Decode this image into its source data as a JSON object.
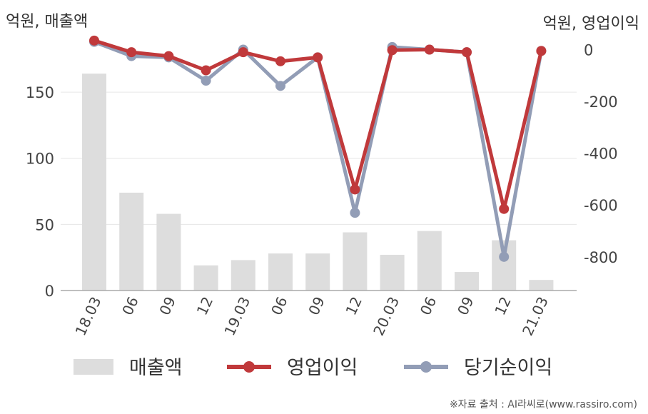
{
  "chart_data": {
    "type": "bar+line",
    "categories": [
      "18.03",
      "06",
      "09",
      "12",
      "19.03",
      "06",
      "09",
      "12",
      "20.03",
      "06",
      "09",
      "12",
      "21.03"
    ],
    "left_axis": {
      "unit_label": "억원, 매출액",
      "ticks": [
        "0",
        "50",
        "100",
        "150"
      ],
      "tick_values": [
        0,
        50,
        100,
        150
      ],
      "ylim": [
        0,
        190
      ]
    },
    "right_axis": {
      "unit_label": "억원, 영업이익",
      "ticks": [
        "0",
        "-200",
        "-400",
        "-600",
        "-800"
      ],
      "tick_values": [
        0,
        -200,
        -400,
        -600,
        -800
      ],
      "ylim": [
        -930,
        40
      ]
    },
    "series": [
      {
        "name": "매출액",
        "kind": "bar",
        "axis": "left",
        "color": "#dddddd",
        "values": [
          164,
          74,
          58,
          19,
          23,
          28,
          28,
          44,
          27,
          45,
          14,
          38,
          8
        ]
      },
      {
        "name": "영업이익",
        "kind": "line",
        "axis": "right",
        "color": "#c0393b",
        "values": [
          35,
          -10,
          -25,
          -80,
          -10,
          -45,
          -30,
          -540,
          -2,
          0,
          -10,
          -615,
          -5
        ]
      },
      {
        "name": "당기순이익",
        "kind": "line",
        "axis": "right",
        "color": "#929db6",
        "values": [
          30,
          -25,
          -30,
          -120,
          0,
          -140,
          -30,
          -630,
          10,
          0,
          -10,
          -800,
          -5
        ]
      }
    ],
    "legend_position": "bottom",
    "grid": true
  },
  "source": "※자료 출처 : AI라씨로(www.rassiro.com)"
}
